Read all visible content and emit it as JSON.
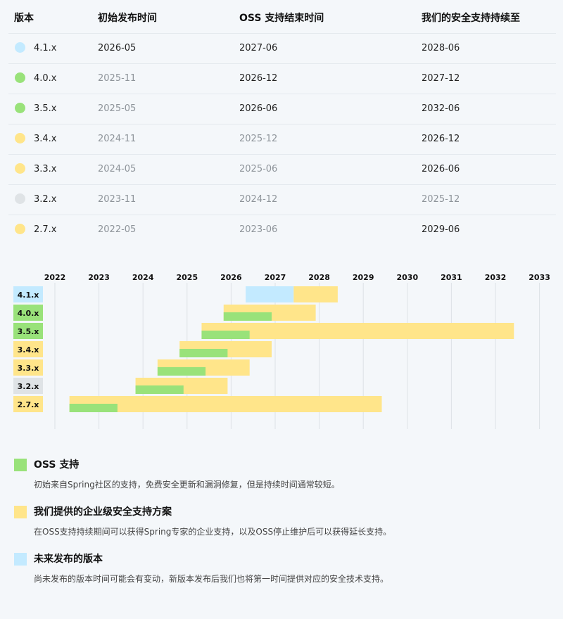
{
  "colors": {
    "oss": "#99e27a",
    "enterprise": "#ffe58a",
    "future": "#c3eaff",
    "eol": "#dfe3e6"
  },
  "table": {
    "headers": [
      "版本",
      "初始发布时间",
      "OSS 支持结束时间",
      "我们的安全支持持续至"
    ],
    "rows": [
      {
        "version": "4.1.x",
        "status": "future",
        "initial": "2026-05",
        "oss_end": "2027-06",
        "enterprise_end": "2028-06",
        "dim": [
          false,
          false,
          false
        ]
      },
      {
        "version": "4.0.x",
        "status": "oss",
        "initial": "2025-11",
        "oss_end": "2026-12",
        "enterprise_end": "2027-12",
        "dim": [
          true,
          false,
          false
        ]
      },
      {
        "version": "3.5.x",
        "status": "oss",
        "initial": "2025-05",
        "oss_end": "2026-06",
        "enterprise_end": "2032-06",
        "dim": [
          true,
          false,
          false
        ]
      },
      {
        "version": "3.4.x",
        "status": "enterprise",
        "initial": "2024-11",
        "oss_end": "2025-12",
        "enterprise_end": "2026-12",
        "dim": [
          true,
          true,
          false
        ]
      },
      {
        "version": "3.3.x",
        "status": "enterprise",
        "initial": "2024-05",
        "oss_end": "2025-06",
        "enterprise_end": "2026-06",
        "dim": [
          true,
          true,
          false
        ]
      },
      {
        "version": "3.2.x",
        "status": "eol",
        "initial": "2023-11",
        "oss_end": "2024-12",
        "enterprise_end": "2025-12",
        "dim": [
          true,
          true,
          true
        ]
      },
      {
        "version": "2.7.x",
        "status": "enterprise",
        "initial": "2022-05",
        "oss_end": "2023-06",
        "enterprise_end": "2029-06",
        "dim": [
          true,
          true,
          false
        ]
      }
    ]
  },
  "chart_data": {
    "type": "gantt",
    "x_ticks": [
      "2022",
      "2023",
      "2024",
      "2025",
      "2026",
      "2027",
      "2028",
      "2029",
      "2030",
      "2031",
      "2032",
      "2033"
    ],
    "xlim": [
      2022,
      2033
    ],
    "grid": true,
    "rows": [
      {
        "version": "4.1.x",
        "status": "future",
        "segments": [
          {
            "kind": "future",
            "start": 2026.33,
            "end": 2027.42
          },
          {
            "kind": "enterprise",
            "start": 2027.42,
            "end": 2028.42
          }
        ]
      },
      {
        "version": "4.0.x",
        "status": "oss",
        "segments": [
          {
            "kind": "enterprise",
            "start": 2025.83,
            "end": 2027.92
          },
          {
            "kind": "oss",
            "start": 2025.83,
            "end": 2026.92
          }
        ]
      },
      {
        "version": "3.5.x",
        "status": "oss",
        "segments": [
          {
            "kind": "enterprise",
            "start": 2025.33,
            "end": 2032.42
          },
          {
            "kind": "oss",
            "start": 2025.33,
            "end": 2026.42
          }
        ]
      },
      {
        "version": "3.4.x",
        "status": "enterprise",
        "segments": [
          {
            "kind": "enterprise",
            "start": 2024.83,
            "end": 2026.92
          },
          {
            "kind": "oss",
            "start": 2024.83,
            "end": 2025.92
          }
        ]
      },
      {
        "version": "3.3.x",
        "status": "enterprise",
        "segments": [
          {
            "kind": "enterprise",
            "start": 2024.33,
            "end": 2026.42
          },
          {
            "kind": "oss",
            "start": 2024.33,
            "end": 2025.42
          }
        ]
      },
      {
        "version": "3.2.x",
        "status": "eol",
        "segments": [
          {
            "kind": "enterprise",
            "start": 2023.83,
            "end": 2025.92
          },
          {
            "kind": "oss",
            "start": 2023.83,
            "end": 2024.92
          }
        ]
      },
      {
        "version": "2.7.x",
        "status": "enterprise",
        "segments": [
          {
            "kind": "enterprise",
            "start": 2022.33,
            "end": 2029.42
          },
          {
            "kind": "oss",
            "start": 2022.33,
            "end": 2023.42
          }
        ]
      }
    ]
  },
  "legend": [
    {
      "color": "oss",
      "title": "OSS 支持",
      "desc": "初始来自Spring社区的支持，免费安全更新和漏洞修复，但是持续时间通常较短。"
    },
    {
      "color": "enterprise",
      "title": "我们提供的企业级安全支持方案",
      "desc": "在OSS支持持续期间可以获得Spring专家的企业支持，以及OSS停止维护后可以获得延长支持。"
    },
    {
      "color": "future",
      "title": "未来发布的版本",
      "desc": "尚未发布的版本时间可能会有变动，新版本发布后我们也将第一时间提供对应的安全技术支持。"
    }
  ]
}
